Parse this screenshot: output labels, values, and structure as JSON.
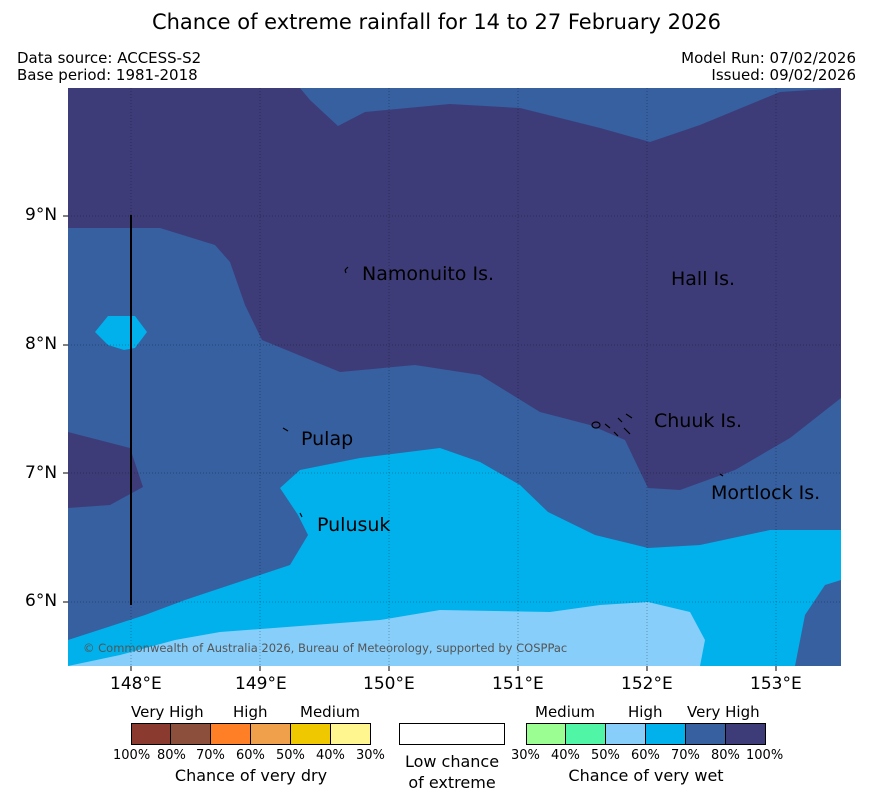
{
  "title": "Chance of extreme rainfall for 14 to 27 February 2026",
  "meta": {
    "data_source": "Data source: ACCESS-S2",
    "base_period": "Base period: 1981-2018",
    "model_run": "Model Run: 07/02/2026",
    "issued": "Issued: 09/02/2026"
  },
  "axes": {
    "lon_ticks": [
      "148°E",
      "149°E",
      "150°E",
      "151°E",
      "152°E",
      "153°E"
    ],
    "lat_ticks": [
      "9°N",
      "8°N",
      "7°N",
      "6°N"
    ]
  },
  "places": {
    "namonuito": "Namonuito Is.",
    "hall": "Hall Is.",
    "pulap": "Pulap",
    "chuuk": "Chuuk Is.",
    "pulusuk": "Pulusuk",
    "mortlock": "Mortlock Is."
  },
  "copyright": "© Commonwealth of Australia 2026, Bureau of Meteorology, supported by COSPPac",
  "legend": {
    "dry": {
      "groups": [
        "Very High",
        "High",
        "Medium"
      ],
      "pcts": [
        "100%",
        "80%",
        "70%",
        "60%",
        "50%",
        "40%",
        "30%"
      ],
      "caption": "Chance of very dry",
      "colors": [
        "#8b3a2f",
        "#8c4f3c",
        "#ff7f27",
        "#f0a04b",
        "#f0c800",
        "#fff68f"
      ]
    },
    "low": {
      "line1": "Low chance",
      "line2": "of extreme"
    },
    "wet": {
      "groups": [
        "Medium",
        "High",
        "Very High"
      ],
      "pcts": [
        "30%",
        "40%",
        "50%",
        "60%",
        "70%",
        "80%",
        "100%"
      ],
      "caption": "Chance of very wet",
      "colors": [
        "#9afe92",
        "#50f5a6",
        "#87cefa",
        "#00b1ec",
        "#3660a0",
        "#3d3c78"
      ]
    }
  },
  "colors": {
    "very_high": "#3d3c78",
    "high_80": "#3660a0",
    "band_70": "#00b1ec",
    "band_60": "#87cefa"
  }
}
